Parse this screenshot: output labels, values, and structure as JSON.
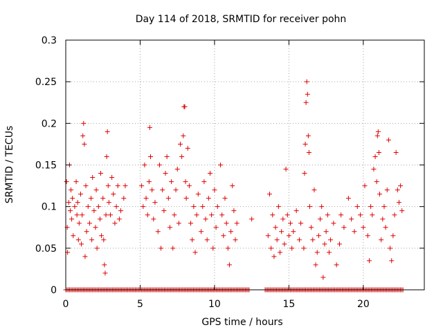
{
  "chart_data": {
    "type": "scatter",
    "title": "Day 114 of 2018, SRMTID for receiver pohn",
    "xlabel": "GPS time / hours",
    "ylabel": "SRMTID / TECUs",
    "xlim": [
      0,
      24.1
    ],
    "ylim": [
      0,
      0.3
    ],
    "xticks": [
      "0",
      "5",
      "10",
      "15",
      "20"
    ],
    "yticks": [
      "0",
      "0.05",
      "0.1",
      "0.15",
      "0.2",
      "0.25",
      "0.3"
    ],
    "grid": true,
    "marker": "+",
    "series": [
      {
        "name": "SRMTID",
        "color": "#e00000",
        "points": [
          [
            0.05,
            0.13
          ],
          [
            0.1,
            0.075
          ],
          [
            0.12,
            0.045
          ],
          [
            0.2,
            0.105
          ],
          [
            0.25,
            0.15
          ],
          [
            0.3,
            0.095
          ],
          [
            0.35,
            0.12
          ],
          [
            0.4,
            0.085
          ],
          [
            0.45,
            0.11
          ],
          [
            0.5,
            0.065
          ],
          [
            0.6,
            0.1
          ],
          [
            0.7,
            0.13
          ],
          [
            0.75,
            0.09
          ],
          [
            0.8,
            0.105
          ],
          [
            0.85,
            0.06
          ],
          [
            0.9,
            0.08
          ],
          [
            1.0,
            0.115
          ],
          [
            1.05,
            0.055
          ],
          [
            1.1,
            0.09
          ],
          [
            1.15,
            0.185
          ],
          [
            1.2,
            0.2
          ],
          [
            1.25,
            0.175
          ],
          [
            1.3,
            0.04
          ],
          [
            1.35,
            0.125
          ],
          [
            1.4,
            0.07
          ],
          [
            1.5,
            0.1
          ],
          [
            1.6,
            0.08
          ],
          [
            1.7,
            0.11
          ],
          [
            1.75,
            0.06
          ],
          [
            1.8,
            0.135
          ],
          [
            1.9,
            0.095
          ],
          [
            2.0,
            0.075
          ],
          [
            2.05,
            0.12
          ],
          [
            2.1,
            0.05
          ],
          [
            2.2,
            0.1
          ],
          [
            2.3,
            0.085
          ],
          [
            2.35,
            0.14
          ],
          [
            2.4,
            0.065
          ],
          [
            2.5,
            0.11
          ],
          [
            2.55,
            0.06
          ],
          [
            2.6,
            0.03
          ],
          [
            2.65,
            0.02
          ],
          [
            2.7,
            0.09
          ],
          [
            2.75,
            0.16
          ],
          [
            2.8,
            0.19
          ],
          [
            2.85,
            0.125
          ],
          [
            2.9,
            0.105
          ],
          [
            3.0,
            0.09
          ],
          [
            3.1,
            0.135
          ],
          [
            3.2,
            0.115
          ],
          [
            3.3,
            0.08
          ],
          [
            3.4,
            0.1
          ],
          [
            3.5,
            0.125
          ],
          [
            3.6,
            0.085
          ],
          [
            3.7,
            0.095
          ],
          [
            3.9,
            0.11
          ],
          [
            4.0,
            0.125
          ],
          [
            5.1,
            0.125
          ],
          [
            5.2,
            0.1
          ],
          [
            5.3,
            0.15
          ],
          [
            5.4,
            0.11
          ],
          [
            5.5,
            0.09
          ],
          [
            5.6,
            0.13
          ],
          [
            5.65,
            0.195
          ],
          [
            5.7,
            0.16
          ],
          [
            5.8,
            0.12
          ],
          [
            5.9,
            0.085
          ],
          [
            6.0,
            0.105
          ],
          [
            6.2,
            0.07
          ],
          [
            6.3,
            0.15
          ],
          [
            6.4,
            0.05
          ],
          [
            6.5,
            0.12
          ],
          [
            6.6,
            0.095
          ],
          [
            6.7,
            0.14
          ],
          [
            6.8,
            0.16
          ],
          [
            6.9,
            0.11
          ],
          [
            7.0,
            0.075
          ],
          [
            7.1,
            0.13
          ],
          [
            7.2,
            0.05
          ],
          [
            7.3,
            0.09
          ],
          [
            7.4,
            0.12
          ],
          [
            7.5,
            0.145
          ],
          [
            7.6,
            0.08
          ],
          [
            7.7,
            0.175
          ],
          [
            7.8,
            0.16
          ],
          [
            7.9,
            0.185
          ],
          [
            7.95,
            0.22
          ],
          [
            8.0,
            0.22
          ],
          [
            8.05,
            0.13
          ],
          [
            8.1,
            0.11
          ],
          [
            8.2,
            0.17
          ],
          [
            8.3,
            0.125
          ],
          [
            8.4,
            0.08
          ],
          [
            8.5,
            0.06
          ],
          [
            8.6,
            0.1
          ],
          [
            8.7,
            0.045
          ],
          [
            8.8,
            0.09
          ],
          [
            8.9,
            0.115
          ],
          [
            9.1,
            0.07
          ],
          [
            9.2,
            0.1
          ],
          [
            9.3,
            0.13
          ],
          [
            9.4,
            0.085
          ],
          [
            9.5,
            0.06
          ],
          [
            9.6,
            0.11
          ],
          [
            9.7,
            0.14
          ],
          [
            9.8,
            0.09
          ],
          [
            9.9,
            0.05
          ],
          [
            10.0,
            0.12
          ],
          [
            10.1,
            0.075
          ],
          [
            10.2,
            0.1
          ],
          [
            10.4,
            0.15
          ],
          [
            10.5,
            0.09
          ],
          [
            10.6,
            0.065
          ],
          [
            10.7,
            0.11
          ],
          [
            10.8,
            0.08
          ],
          [
            10.9,
            0.05
          ],
          [
            11.0,
            0.03
          ],
          [
            11.1,
            0.07
          ],
          [
            11.2,
            0.125
          ],
          [
            11.3,
            0.095
          ],
          [
            11.4,
            0.06
          ],
          [
            11.5,
            0.08
          ],
          [
            12.5,
            0.085
          ],
          [
            13.6,
            0.065
          ],
          [
            13.7,
            0.115
          ],
          [
            13.8,
            0.05
          ],
          [
            13.9,
            0.09
          ],
          [
            14.0,
            0.04
          ],
          [
            14.1,
            0.075
          ],
          [
            14.2,
            0.06
          ],
          [
            14.3,
            0.1
          ],
          [
            14.4,
            0.045
          ],
          [
            14.5,
            0.07
          ],
          [
            14.6,
            0.085
          ],
          [
            14.7,
            0.055
          ],
          [
            14.8,
            0.145
          ],
          [
            14.9,
            0.09
          ],
          [
            15.0,
            0.065
          ],
          [
            15.1,
            0.08
          ],
          [
            15.2,
            0.05
          ],
          [
            15.3,
            0.07
          ],
          [
            15.5,
            0.095
          ],
          [
            15.7,
            0.06
          ],
          [
            15.8,
            0.08
          ],
          [
            16.0,
            0.05
          ],
          [
            16.05,
            0.14
          ],
          [
            16.1,
            0.175
          ],
          [
            16.15,
            0.225
          ],
          [
            16.2,
            0.25
          ],
          [
            16.25,
            0.235
          ],
          [
            16.3,
            0.185
          ],
          [
            16.35,
            0.165
          ],
          [
            16.4,
            0.1
          ],
          [
            16.5,
            0.075
          ],
          [
            16.6,
            0.06
          ],
          [
            16.7,
            0.12
          ],
          [
            16.8,
            0.03
          ],
          [
            16.9,
            0.045
          ],
          [
            17.0,
            0.065
          ],
          [
            17.1,
            0.085
          ],
          [
            17.2,
            0.1
          ],
          [
            17.3,
            0.015
          ],
          [
            17.4,
            0.055
          ],
          [
            17.5,
            0.07
          ],
          [
            17.6,
            0.09
          ],
          [
            17.7,
            0.045
          ],
          [
            17.8,
            0.06
          ],
          [
            18.0,
            0.08
          ],
          [
            18.2,
            0.03
          ],
          [
            18.4,
            0.055
          ],
          [
            18.5,
            0.09
          ],
          [
            18.7,
            0.075
          ],
          [
            19.0,
            0.11
          ],
          [
            19.2,
            0.085
          ],
          [
            19.4,
            0.07
          ],
          [
            19.6,
            0.1
          ],
          [
            19.8,
            0.09
          ],
          [
            20.0,
            0.075
          ],
          [
            20.1,
            0.125
          ],
          [
            20.3,
            0.065
          ],
          [
            20.4,
            0.035
          ],
          [
            20.5,
            0.1
          ],
          [
            20.6,
            0.09
          ],
          [
            20.7,
            0.145
          ],
          [
            20.8,
            0.16
          ],
          [
            20.9,
            0.13
          ],
          [
            20.95,
            0.185
          ],
          [
            21.0,
            0.19
          ],
          [
            21.05,
            0.165
          ],
          [
            21.1,
            0.115
          ],
          [
            21.2,
            0.06
          ],
          [
            21.3,
            0.085
          ],
          [
            21.4,
            0.1
          ],
          [
            21.5,
            0.075
          ],
          [
            21.6,
            0.12
          ],
          [
            21.7,
            0.18
          ],
          [
            21.8,
            0.05
          ],
          [
            21.9,
            0.035
          ],
          [
            22.0,
            0.065
          ],
          [
            22.1,
            0.09
          ],
          [
            22.2,
            0.165
          ],
          [
            22.3,
            0.12
          ],
          [
            22.4,
            0.105
          ],
          [
            22.5,
            0.125
          ],
          [
            22.6,
            0.095
          ]
        ]
      }
    ],
    "zero_band": {
      "y": 0,
      "x_ranges": [
        [
          0.0,
          12.4
        ],
        [
          13.4,
          22.7
        ]
      ]
    }
  }
}
